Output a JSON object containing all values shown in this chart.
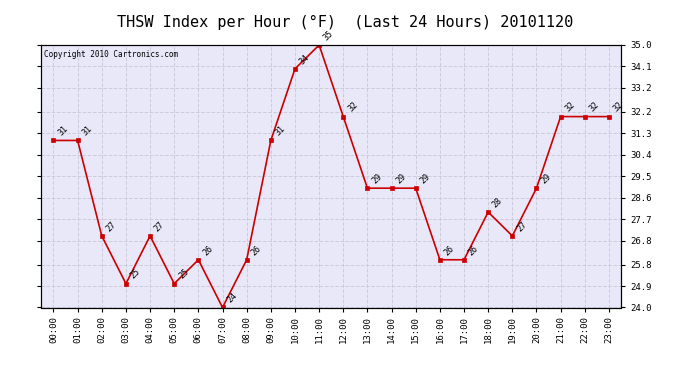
{
  "title": "THSW Index per Hour (°F)  (Last 24 Hours) 20101120",
  "copyright": "Copyright 2010 Cartronics.com",
  "hours": [
    "00:00",
    "01:00",
    "02:00",
    "03:00",
    "04:00",
    "05:00",
    "06:00",
    "07:00",
    "08:00",
    "09:00",
    "10:00",
    "11:00",
    "12:00",
    "13:00",
    "14:00",
    "15:00",
    "16:00",
    "17:00",
    "18:00",
    "19:00",
    "20:00",
    "21:00",
    "22:00",
    "23:00"
  ],
  "values": [
    31,
    31,
    27,
    25,
    27,
    25,
    26,
    24,
    26,
    31,
    34,
    35,
    32,
    29,
    29,
    29,
    26,
    26,
    28,
    27,
    29,
    32,
    32,
    32
  ],
  "ylim_min": 24.0,
  "ylim_max": 35.0,
  "yticks": [
    24.0,
    24.9,
    25.8,
    26.8,
    27.7,
    28.6,
    29.5,
    30.4,
    31.3,
    32.2,
    33.2,
    34.1,
    35.0
  ],
  "line_color": "#cc0000",
  "marker_color": "#cc0000",
  "bg_color": "#ffffff",
  "plot_bg_color": "#e8e8f8",
  "title_fontsize": 11,
  "label_fontsize": 6,
  "tick_fontsize": 6.5,
  "grid_color": "#ccccdd",
  "border_color": "#000000"
}
